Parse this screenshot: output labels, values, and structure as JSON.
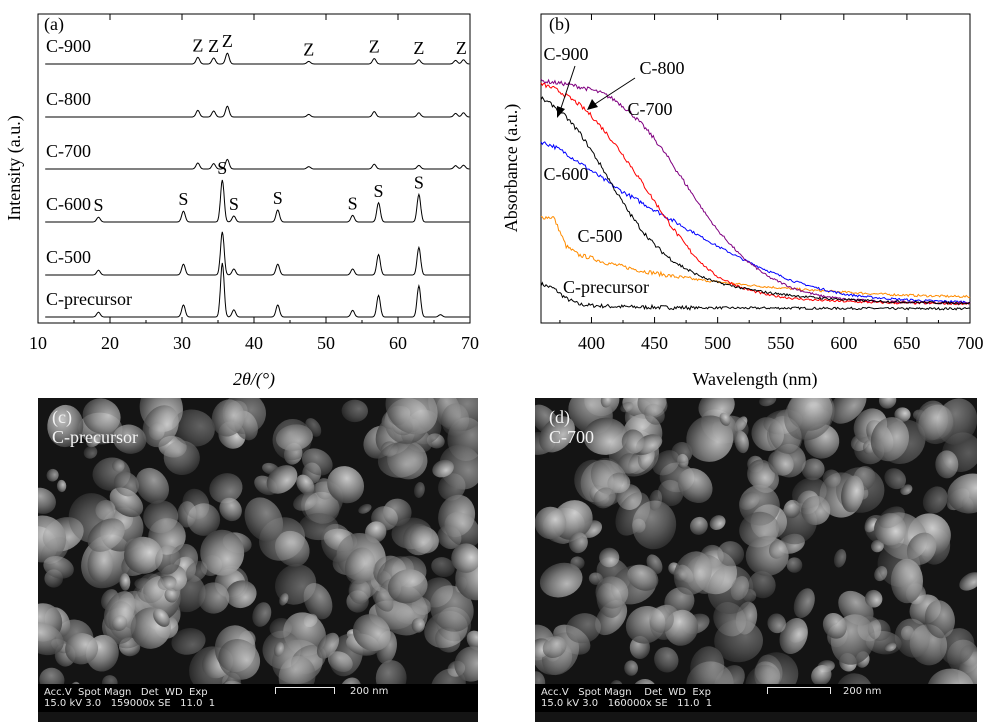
{
  "chart_data": [
    {
      "panel": "(a)",
      "type": "line",
      "xlabel": "2θ/(°)",
      "ylabel": "Intensity (a.u.)",
      "xlim": [
        10,
        70
      ],
      "xticks": [
        10,
        20,
        30,
        40,
        50,
        60,
        70
      ],
      "series": [
        {
          "name": "C-900",
          "peaks": [
            [
              32.2,
              0.55
            ],
            [
              34.4,
              0.5
            ],
            [
              36.3,
              0.9
            ],
            [
              47.6,
              0.22
            ],
            [
              56.7,
              0.45
            ],
            [
              62.9,
              0.35
            ],
            [
              68.0,
              0.3
            ],
            [
              69.1,
              0.35
            ]
          ]
        },
        {
          "name": "C-800",
          "peaks": [
            [
              32.2,
              0.55
            ],
            [
              34.4,
              0.5
            ],
            [
              36.3,
              0.9
            ],
            [
              47.6,
              0.22
            ],
            [
              56.7,
              0.45
            ],
            [
              62.9,
              0.35
            ],
            [
              68.0,
              0.3
            ],
            [
              69.1,
              0.35
            ]
          ]
        },
        {
          "name": "C-700",
          "peaks": [
            [
              32.2,
              0.5
            ],
            [
              34.4,
              0.45
            ],
            [
              36.3,
              0.8
            ],
            [
              47.6,
              0.2
            ],
            [
              56.7,
              0.4
            ],
            [
              62.9,
              0.3
            ],
            [
              68.0,
              0.28
            ],
            [
              69.1,
              0.32
            ]
          ]
        },
        {
          "name": "C-600",
          "peaks": [
            [
              18.4,
              0.4
            ],
            [
              30.2,
              0.9
            ],
            [
              35.6,
              3.5
            ],
            [
              37.2,
              0.5
            ],
            [
              43.3,
              1.0
            ],
            [
              53.7,
              0.55
            ],
            [
              57.3,
              1.6
            ],
            [
              62.9,
              2.3
            ]
          ]
        },
        {
          "name": "C-500",
          "peaks": [
            [
              18.4,
              0.4
            ],
            [
              30.2,
              0.9
            ],
            [
              35.6,
              3.6
            ],
            [
              37.2,
              0.5
            ],
            [
              43.3,
              0.9
            ],
            [
              53.7,
              0.5
            ],
            [
              57.3,
              1.7
            ],
            [
              62.9,
              2.3
            ]
          ]
        },
        {
          "name": "C-precursor",
          "peaks": [
            [
              18.4,
              0.4
            ],
            [
              30.2,
              1.0
            ],
            [
              35.6,
              4.5
            ],
            [
              37.2,
              0.6
            ],
            [
              43.3,
              1.0
            ],
            [
              53.7,
              0.55
            ],
            [
              57.3,
              1.8
            ],
            [
              62.9,
              2.6
            ],
            [
              65.9,
              0.2
            ]
          ]
        }
      ],
      "labels": [
        {
          "text": "C-900",
          "series": "C-900"
        },
        {
          "text": "C-800",
          "series": "C-800"
        },
        {
          "text": "C-700",
          "series": "C-700"
        },
        {
          "text": "C-600",
          "series": "C-600"
        },
        {
          "text": "C-500",
          "series": "C-500"
        },
        {
          "text": "C-precursor",
          "series": "C-precursor"
        }
      ],
      "annotations": [
        {
          "text": "Z",
          "x": 32.2,
          "series": "C-900"
        },
        {
          "text": "Z",
          "x": 34.4,
          "series": "C-900"
        },
        {
          "text": "Z",
          "x": 36.3,
          "series": "C-900"
        },
        {
          "text": "Z",
          "x": 47.6,
          "series": "C-900"
        },
        {
          "text": "Z",
          "x": 56.7,
          "series": "C-900"
        },
        {
          "text": "Z",
          "x": 62.9,
          "series": "C-900"
        },
        {
          "text": "Z",
          "x": 68.8,
          "series": "C-900"
        },
        {
          "text": "S",
          "x": 18.4,
          "series": "C-600"
        },
        {
          "text": "S",
          "x": 30.2,
          "series": "C-600"
        },
        {
          "text": "S",
          "x": 35.6,
          "series": "C-600"
        },
        {
          "text": "S",
          "x": 37.2,
          "series": "C-600"
        },
        {
          "text": "S",
          "x": 43.3,
          "series": "C-600"
        },
        {
          "text": "S",
          "x": 53.7,
          "series": "C-600"
        },
        {
          "text": "S",
          "x": 57.3,
          "series": "C-600"
        },
        {
          "text": "S",
          "x": 62.9,
          "series": "C-600"
        }
      ]
    },
    {
      "panel": "(b)",
      "type": "line",
      "xlabel": "Wavelength (nm)",
      "ylabel": "Absorbance (a.u.)",
      "xlim": [
        360,
        700
      ],
      "xticks": [
        400,
        450,
        500,
        550,
        600,
        650,
        700
      ],
      "ylim": [
        0,
        1
      ],
      "x": [
        360,
        370,
        380,
        390,
        400,
        410,
        420,
        430,
        440,
        450,
        460,
        470,
        480,
        490,
        500,
        520,
        540,
        560,
        580,
        600,
        620,
        640,
        660,
        680,
        700
      ],
      "series": [
        {
          "name": "C-precursor",
          "color": "#000000",
          "values": [
            0.1,
            0.085,
            0.05,
            0.03,
            0.026,
            0.024,
            0.022,
            0.021,
            0.02,
            0.02,
            0.019,
            0.019,
            0.018,
            0.018,
            0.018,
            0.017,
            0.017,
            0.017,
            0.016,
            0.016,
            0.016,
            0.015,
            0.015,
            0.015,
            0.015
          ]
        },
        {
          "name": "C-500",
          "color": "#ff8c00",
          "values": [
            0.33,
            0.33,
            0.23,
            0.2,
            0.19,
            0.175,
            0.165,
            0.155,
            0.145,
            0.138,
            0.13,
            0.123,
            0.117,
            0.112,
            0.107,
            0.098,
            0.09,
            0.083,
            0.077,
            0.072,
            0.067,
            0.063,
            0.06,
            0.058,
            0.056
          ]
        },
        {
          "name": "C-600",
          "color": "#0000ff",
          "values": [
            0.59,
            0.575,
            0.55,
            0.52,
            0.49,
            0.46,
            0.43,
            0.405,
            0.38,
            0.355,
            0.33,
            0.305,
            0.28,
            0.255,
            0.23,
            0.185,
            0.145,
            0.11,
            0.085,
            0.065,
            0.055,
            0.048,
            0.043,
            0.04,
            0.038
          ]
        },
        {
          "name": "C-700",
          "color": "#800080",
          "values": [
            0.8,
            0.795,
            0.79,
            0.78,
            0.77,
            0.755,
            0.73,
            0.695,
            0.65,
            0.6,
            0.54,
            0.475,
            0.41,
            0.345,
            0.285,
            0.19,
            0.125,
            0.085,
            0.06,
            0.048,
            0.042,
            0.038,
            0.036,
            0.035,
            0.034
          ]
        },
        {
          "name": "C-800",
          "color": "#ff0000",
          "values": [
            0.79,
            0.775,
            0.75,
            0.72,
            0.68,
            0.63,
            0.575,
            0.515,
            0.45,
            0.385,
            0.32,
            0.26,
            0.205,
            0.16,
            0.125,
            0.085,
            0.062,
            0.05,
            0.044,
            0.04,
            0.037,
            0.035,
            0.034,
            0.033,
            0.032
          ]
        },
        {
          "name": "C-900",
          "color": "#000000",
          "values": [
            0.74,
            0.715,
            0.675,
            0.625,
            0.56,
            0.49,
            0.415,
            0.345,
            0.285,
            0.235,
            0.195,
            0.165,
            0.14,
            0.12,
            0.105,
            0.085,
            0.07,
            0.06,
            0.052,
            0.046,
            0.042,
            0.039,
            0.037,
            0.035,
            0.034
          ]
        }
      ],
      "labels": [
        {
          "text": "C-900",
          "series": "C-900"
        },
        {
          "text": "C-800",
          "series": "C-800"
        },
        {
          "text": "C-700",
          "series": "C-700"
        },
        {
          "text": "C-600",
          "series": "C-600"
        },
        {
          "text": "C-500",
          "series": "C-500"
        },
        {
          "text": "C-precursor",
          "series": "C-precursor"
        }
      ]
    }
  ],
  "micrographs": [
    {
      "panel": "(c)",
      "sample": "C-precursor",
      "info_line1": "Acc.V  Spot Magn   Det  WD  Exp",
      "info_line2": "15.0 kV 3.0   159000x SE   11.0  1",
      "scale_text": "200 nm"
    },
    {
      "panel": "(d)",
      "sample": "C-700",
      "info_line1": "Acc.V   Spot Magn    Det  WD  Exp",
      "info_line2": "15.0 kV 3.0   160000x SE   11.0  1",
      "scale_text": "200 nm"
    }
  ]
}
